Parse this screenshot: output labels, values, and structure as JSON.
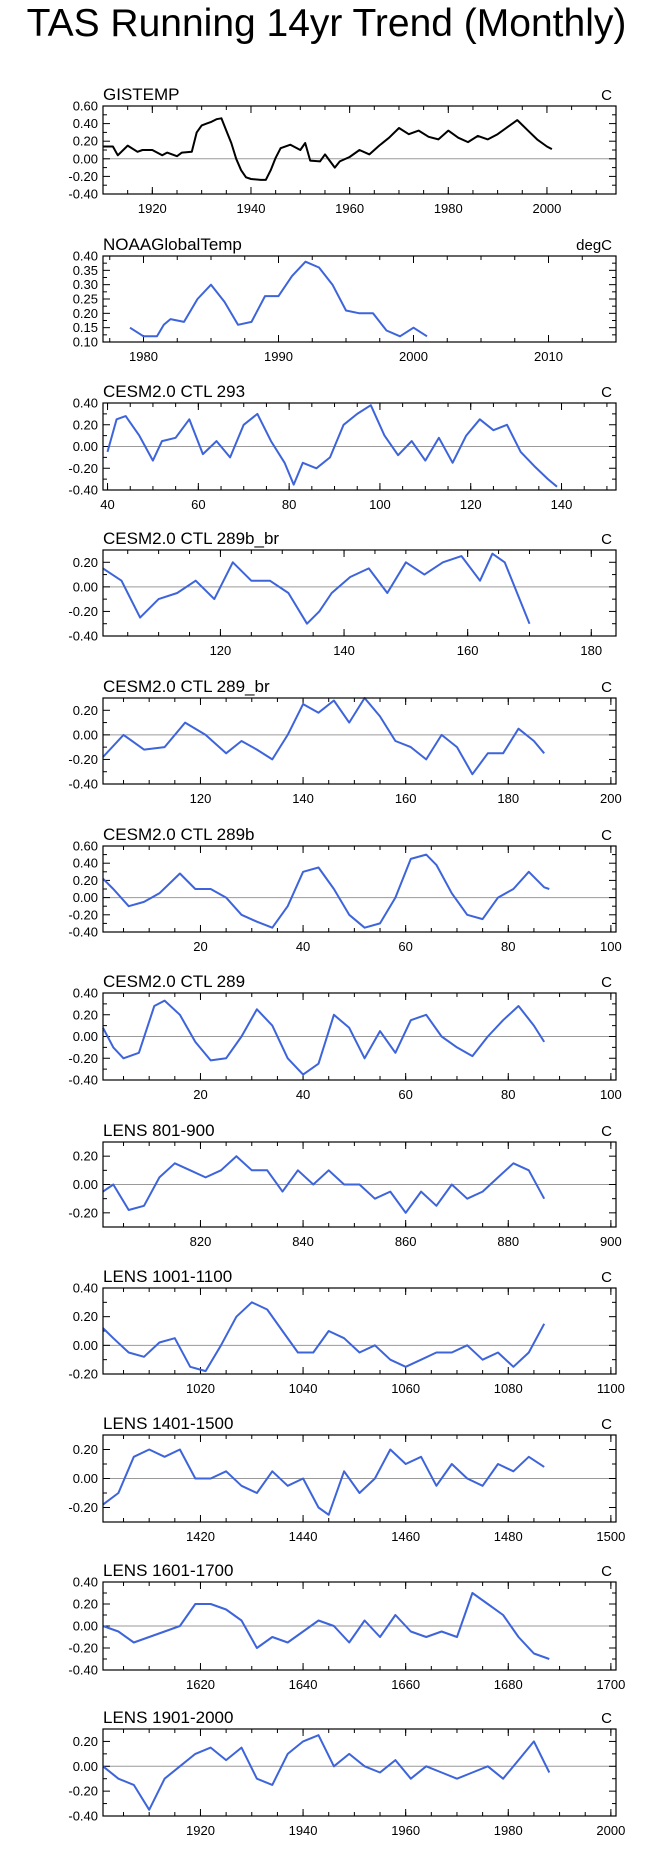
{
  "title": "TAS Running 14yr Trend (Monthly)",
  "chart_data": [
    {
      "type": "line",
      "title": "GISTEMP",
      "units": "C",
      "color": "#000000",
      "xlim": [
        1910,
        2014
      ],
      "ylim": [
        -0.4,
        0.6
      ],
      "yticks": [
        0.6,
        0.4,
        0.2,
        0.0,
        -0.2,
        -0.4
      ],
      "ytick_labels": [
        "0.60",
        "0.40",
        "0.20",
        "0.00",
        "-0.20",
        "-0.40"
      ],
      "xticks": [
        1920,
        1940,
        1960,
        1980,
        2000
      ],
      "xtick_labels": [
        "1920",
        "1940",
        "1960",
        "1980",
        "2000"
      ],
      "x": [
        1910,
        1912,
        1913,
        1915,
        1917,
        1918,
        1920,
        1922,
        1923,
        1925,
        1926,
        1928,
        1929,
        1930,
        1931,
        1932,
        1933,
        1934,
        1935,
        1936,
        1937,
        1938,
        1939,
        1940,
        1942,
        1943,
        1944,
        1945,
        1946,
        1948,
        1950,
        1951,
        1952,
        1954,
        1955,
        1957,
        1958,
        1960,
        1962,
        1964,
        1966,
        1968,
        1970,
        1972,
        1974,
        1976,
        1978,
        1980,
        1982,
        1984,
        1986,
        1988,
        1990,
        1992,
        1994,
        1996,
        1998,
        2000,
        2001
      ],
      "y": [
        0.14,
        0.14,
        0.04,
        0.15,
        0.08,
        0.1,
        0.1,
        0.04,
        0.07,
        0.03,
        0.07,
        0.08,
        0.3,
        0.38,
        0.4,
        0.42,
        0.45,
        0.46,
        0.32,
        0.18,
        0.0,
        -0.13,
        -0.21,
        -0.23,
        -0.24,
        -0.24,
        -0.13,
        0.01,
        0.12,
        0.16,
        0.1,
        0.18,
        -0.02,
        -0.03,
        0.05,
        -0.1,
        -0.03,
        0.02,
        0.1,
        0.05,
        0.15,
        0.24,
        0.35,
        0.28,
        0.32,
        0.25,
        0.22,
        0.32,
        0.24,
        0.19,
        0.26,
        0.22,
        0.28,
        0.36,
        0.44,
        0.33,
        0.22,
        0.14,
        0.11
      ]
    },
    {
      "type": "line",
      "title": "NOAAGlobalTemp",
      "units": "degC",
      "color": "#3d64db",
      "xlim": [
        1977,
        2015
      ],
      "ylim": [
        0.1,
        0.4
      ],
      "yticks": [
        0.4,
        0.35,
        0.3,
        0.25,
        0.2,
        0.15,
        0.1
      ],
      "ytick_labels": [
        "0.40",
        "0.35",
        "0.30",
        "0.25",
        "0.20",
        "0.15",
        "0.10"
      ],
      "xticks": [
        1980,
        1990,
        2000,
        2010
      ],
      "xtick_labels": [
        "1980",
        "1990",
        "2000",
        "2010"
      ],
      "x": [
        1979,
        1980,
        1981,
        1981.5,
        1982,
        1983,
        1984,
        1985,
        1986,
        1987,
        1988,
        1989,
        1990,
        1991,
        1992,
        1993,
        1994,
        1995,
        1996,
        1997,
        1998,
        1999,
        2000,
        2001
      ],
      "y": [
        0.15,
        0.12,
        0.12,
        0.16,
        0.18,
        0.17,
        0.25,
        0.3,
        0.24,
        0.16,
        0.17,
        0.26,
        0.26,
        0.33,
        0.38,
        0.36,
        0.3,
        0.21,
        0.2,
        0.2,
        0.14,
        0.12,
        0.15,
        0.12
      ]
    },
    {
      "type": "line",
      "title": "CESM2.0 CTL 293",
      "units": "C",
      "color": "#3d64db",
      "xlim": [
        39,
        152
      ],
      "ylim": [
        -0.4,
        0.4
      ],
      "yticks": [
        0.4,
        0.2,
        0.0,
        -0.2,
        -0.4
      ],
      "ytick_labels": [
        "0.40",
        "0.20",
        "0.00",
        "-0.20",
        "-0.40"
      ],
      "xticks": [
        40,
        60,
        80,
        100,
        120,
        140
      ],
      "xtick_labels": [
        "40",
        "60",
        "80",
        "100",
        "120",
        "140"
      ],
      "x": [
        40,
        42,
        44,
        47,
        50,
        52,
        55,
        58,
        61,
        64,
        67,
        70,
        73,
        76,
        79,
        81,
        83,
        86,
        89,
        92,
        95,
        98,
        101,
        104,
        107,
        110,
        113,
        116,
        119,
        122,
        125,
        128,
        131,
        134,
        137,
        139
      ],
      "y": [
        -0.05,
        0.25,
        0.28,
        0.1,
        -0.13,
        0.05,
        0.08,
        0.25,
        -0.07,
        0.05,
        -0.1,
        0.2,
        0.3,
        0.05,
        -0.15,
        -0.35,
        -0.15,
        -0.2,
        -0.1,
        0.2,
        0.3,
        0.38,
        0.1,
        -0.08,
        0.05,
        -0.13,
        0.08,
        -0.15,
        0.1,
        0.25,
        0.15,
        0.2,
        -0.05,
        -0.18,
        -0.3,
        -0.37
      ]
    },
    {
      "type": "line",
      "title": "CESM2.0 CTL 289b_br",
      "units": "C",
      "color": "#3d64db",
      "xlim": [
        101,
        184
      ],
      "ylim": [
        -0.4,
        0.3
      ],
      "yticks": [
        0.2,
        0.0,
        -0.2,
        -0.4
      ],
      "ytick_labels": [
        "0.20",
        "0.00",
        "-0.20",
        "-0.40"
      ],
      "xticks": [
        120,
        140,
        160,
        180
      ],
      "xtick_labels": [
        "120",
        "140",
        "160",
        "180"
      ],
      "x": [
        101,
        104,
        107,
        110,
        113,
        116,
        119,
        122,
        125,
        128,
        131,
        134,
        136,
        138,
        141,
        144,
        147,
        150,
        153,
        156,
        159,
        162,
        164,
        166,
        168,
        170
      ],
      "y": [
        0.15,
        0.05,
        -0.25,
        -0.1,
        -0.05,
        0.05,
        -0.1,
        0.2,
        0.05,
        0.05,
        -0.05,
        -0.3,
        -0.2,
        -0.05,
        0.08,
        0.15,
        -0.05,
        0.2,
        0.1,
        0.2,
        0.25,
        0.05,
        0.27,
        0.2,
        -0.05,
        -0.3
      ]
    },
    {
      "type": "line",
      "title": "CESM2.0 CTL 289_br",
      "units": "C",
      "color": "#3d64db",
      "xlim": [
        101,
        201
      ],
      "ylim": [
        -0.4,
        0.3
      ],
      "yticks": [
        0.2,
        0.0,
        -0.2,
        -0.4
      ],
      "ytick_labels": [
        "0.20",
        "0.00",
        "-0.20",
        "-0.40"
      ],
      "xticks": [
        120,
        140,
        160,
        180,
        200
      ],
      "xtick_labels": [
        "120",
        "140",
        "160",
        "180",
        "200"
      ],
      "x": [
        101,
        105,
        109,
        113,
        117,
        121,
        125,
        128,
        131,
        134,
        137,
        140,
        143,
        146,
        149,
        152,
        155,
        158,
        161,
        164,
        167,
        170,
        173,
        176,
        179,
        182,
        185,
        187
      ],
      "y": [
        -0.18,
        0.0,
        -0.12,
        -0.1,
        0.1,
        0.0,
        -0.15,
        -0.05,
        -0.12,
        -0.2,
        0.0,
        0.25,
        0.18,
        0.28,
        0.1,
        0.3,
        0.15,
        -0.05,
        -0.1,
        -0.2,
        0.0,
        -0.1,
        -0.32,
        -0.15,
        -0.15,
        0.05,
        -0.05,
        -0.15
      ]
    },
    {
      "type": "line",
      "title": "CESM2.0 CTL 289b",
      "units": "C",
      "color": "#3d64db",
      "xlim": [
        1,
        101
      ],
      "ylim": [
        -0.4,
        0.6
      ],
      "yticks": [
        0.6,
        0.4,
        0.2,
        0.0,
        -0.2,
        -0.4
      ],
      "ytick_labels": [
        "0.60",
        "0.40",
        "0.20",
        "0.00",
        "-0.20",
        "-0.40"
      ],
      "xticks": [
        20,
        40,
        60,
        80,
        100
      ],
      "xtick_labels": [
        "20",
        "40",
        "60",
        "80",
        "100"
      ],
      "x": [
        1,
        3,
        6,
        9,
        12,
        16,
        19,
        22,
        25,
        28,
        31,
        34,
        37,
        40,
        43,
        46,
        49,
        52,
        55,
        58,
        61,
        64,
        66,
        69,
        72,
        75,
        78,
        81,
        84,
        87,
        88
      ],
      "y": [
        0.22,
        0.1,
        -0.1,
        -0.05,
        0.05,
        0.28,
        0.1,
        0.1,
        0.0,
        -0.2,
        -0.28,
        -0.35,
        -0.1,
        0.3,
        0.35,
        0.1,
        -0.2,
        -0.35,
        -0.3,
        0.0,
        0.45,
        0.5,
        0.38,
        0.05,
        -0.2,
        -0.25,
        0.0,
        0.1,
        0.3,
        0.12,
        0.1
      ]
    },
    {
      "type": "line",
      "title": "CESM2.0 CTL 289",
      "units": "C",
      "color": "#3d64db",
      "xlim": [
        1,
        101
      ],
      "ylim": [
        -0.4,
        0.4
      ],
      "yticks": [
        0.4,
        0.2,
        0.0,
        -0.2,
        -0.4
      ],
      "ytick_labels": [
        "0.40",
        "0.20",
        "0.00",
        "-0.20",
        "-0.40"
      ],
      "xticks": [
        20,
        40,
        60,
        80,
        100
      ],
      "xtick_labels": [
        "20",
        "40",
        "60",
        "80",
        "100"
      ],
      "x": [
        1,
        3,
        5,
        8,
        11,
        13,
        16,
        19,
        22,
        25,
        28,
        31,
        34,
        37,
        40,
        43,
        46,
        49,
        52,
        55,
        58,
        61,
        64,
        67,
        70,
        73,
        76,
        79,
        82,
        85,
        87
      ],
      "y": [
        0.08,
        -0.1,
        -0.2,
        -0.15,
        0.28,
        0.33,
        0.2,
        -0.05,
        -0.22,
        -0.2,
        0.0,
        0.25,
        0.1,
        -0.2,
        -0.35,
        -0.25,
        0.2,
        0.08,
        -0.2,
        0.05,
        -0.15,
        0.15,
        0.2,
        0.0,
        -0.1,
        -0.18,
        0.0,
        0.15,
        0.28,
        0.1,
        -0.05
      ]
    },
    {
      "type": "line",
      "title": "LENS 801-900",
      "units": "C",
      "color": "#3d64db",
      "xlim": [
        801,
        901
      ],
      "ylim": [
        -0.3,
        0.3
      ],
      "yticks": [
        0.2,
        0.0,
        -0.2
      ],
      "ytick_labels": [
        "0.20",
        "0.00",
        "-0.20"
      ],
      "xticks": [
        820,
        840,
        860,
        880,
        900
      ],
      "xtick_labels": [
        "820",
        "840",
        "860",
        "880",
        "900"
      ],
      "x": [
        801,
        803,
        806,
        809,
        812,
        815,
        818,
        821,
        824,
        827,
        830,
        833,
        836,
        839,
        842,
        845,
        848,
        851,
        854,
        857,
        860,
        863,
        866,
        869,
        872,
        875,
        878,
        881,
        884,
        887
      ],
      "y": [
        -0.05,
        0.0,
        -0.18,
        -0.15,
        0.05,
        0.15,
        0.1,
        0.05,
        0.1,
        0.2,
        0.1,
        0.1,
        -0.05,
        0.1,
        0.0,
        0.1,
        0.0,
        0.0,
        -0.1,
        -0.05,
        -0.2,
        -0.05,
        -0.15,
        0.0,
        -0.1,
        -0.05,
        0.05,
        0.15,
        0.1,
        -0.1
      ]
    },
    {
      "type": "line",
      "title": "LENS 1001-1100",
      "units": "C",
      "color": "#3d64db",
      "xlim": [
        1001,
        1101
      ],
      "ylim": [
        -0.2,
        0.4
      ],
      "yticks": [
        0.4,
        0.2,
        0.0,
        -0.2
      ],
      "ytick_labels": [
        "0.40",
        "0.20",
        "0.00",
        "-0.20"
      ],
      "xticks": [
        1020,
        1040,
        1060,
        1080,
        1100
      ],
      "xtick_labels": [
        "1020",
        "1040",
        "1060",
        "1080",
        "1100"
      ],
      "x": [
        1001,
        1003,
        1006,
        1009,
        1012,
        1015,
        1018,
        1021,
        1024,
        1027,
        1030,
        1033,
        1036,
        1039,
        1042,
        1045,
        1048,
        1051,
        1054,
        1057,
        1060,
        1063,
        1066,
        1069,
        1072,
        1075,
        1078,
        1081,
        1084,
        1087
      ],
      "y": [
        0.12,
        0.05,
        -0.05,
        -0.08,
        0.02,
        0.05,
        -0.15,
        -0.18,
        0.0,
        0.2,
        0.3,
        0.25,
        0.1,
        -0.05,
        -0.05,
        0.1,
        0.05,
        -0.05,
        0.0,
        -0.1,
        -0.15,
        -0.1,
        -0.05,
        -0.05,
        0.0,
        -0.1,
        -0.05,
        -0.15,
        -0.05,
        0.15
      ]
    },
    {
      "type": "line",
      "title": "LENS 1401-1500",
      "units": "C",
      "color": "#3d64db",
      "xlim": [
        1401,
        1501
      ],
      "ylim": [
        -0.3,
        0.3
      ],
      "yticks": [
        0.2,
        0.0,
        -0.2
      ],
      "ytick_labels": [
        "0.20",
        "0.00",
        "-0.20"
      ],
      "xticks": [
        1420,
        1440,
        1460,
        1480,
        1500
      ],
      "xtick_labels": [
        "1420",
        "1440",
        "1460",
        "1480",
        "1500"
      ],
      "x": [
        1401,
        1404,
        1407,
        1410,
        1413,
        1416,
        1419,
        1422,
        1425,
        1428,
        1431,
        1434,
        1437,
        1440,
        1443,
        1445,
        1448,
        1451,
        1454,
        1457,
        1460,
        1463,
        1466,
        1469,
        1472,
        1475,
        1478,
        1481,
        1484,
        1487
      ],
      "y": [
        -0.18,
        -0.1,
        0.15,
        0.2,
        0.15,
        0.2,
        0.0,
        0.0,
        0.05,
        -0.05,
        -0.1,
        0.05,
        -0.05,
        0.0,
        -0.2,
        -0.25,
        0.05,
        -0.1,
        0.0,
        0.2,
        0.1,
        0.15,
        -0.05,
        0.1,
        0.0,
        -0.05,
        0.1,
        0.05,
        0.15,
        0.08
      ]
    },
    {
      "type": "line",
      "title": "LENS 1601-1700",
      "units": "C",
      "color": "#3d64db",
      "xlim": [
        1601,
        1701
      ],
      "ylim": [
        -0.4,
        0.4
      ],
      "yticks": [
        0.4,
        0.2,
        0.0,
        -0.2,
        -0.4
      ],
      "ytick_labels": [
        "0.40",
        "0.20",
        "0.00",
        "-0.20",
        "-0.40"
      ],
      "xticks": [
        1620,
        1640,
        1660,
        1680,
        1700
      ],
      "xtick_labels": [
        "1620",
        "1640",
        "1660",
        "1680",
        "1700"
      ],
      "x": [
        1601,
        1604,
        1607,
        1610,
        1613,
        1616,
        1619,
        1622,
        1625,
        1628,
        1631,
        1634,
        1637,
        1640,
        1643,
        1646,
        1649,
        1652,
        1655,
        1658,
        1661,
        1664,
        1667,
        1670,
        1673,
        1676,
        1679,
        1682,
        1685,
        1688
      ],
      "y": [
        0.0,
        -0.05,
        -0.15,
        -0.1,
        -0.05,
        0.0,
        0.2,
        0.2,
        0.15,
        0.05,
        -0.2,
        -0.1,
        -0.15,
        -0.05,
        0.05,
        0.0,
        -0.15,
        0.05,
        -0.1,
        0.1,
        -0.05,
        -0.1,
        -0.05,
        -0.1,
        0.3,
        0.2,
        0.1,
        -0.1,
        -0.25,
        -0.3
      ]
    },
    {
      "type": "line",
      "title": "LENS 1901-2000",
      "units": "C",
      "color": "#3d64db",
      "xlim": [
        1901,
        2001
      ],
      "ylim": [
        -0.4,
        0.3
      ],
      "yticks": [
        0.2,
        0.0,
        -0.2,
        -0.4
      ],
      "ytick_labels": [
        "0.20",
        "0.00",
        "-0.20",
        "-0.40"
      ],
      "xticks": [
        1920,
        1940,
        1960,
        1980,
        2000
      ],
      "xtick_labels": [
        "1920",
        "1940",
        "1960",
        "1980",
        "2000"
      ],
      "x": [
        1901,
        1904,
        1907,
        1910,
        1913,
        1916,
        1919,
        1922,
        1925,
        1928,
        1931,
        1934,
        1937,
        1940,
        1943,
        1946,
        1949,
        1952,
        1955,
        1958,
        1961,
        1964,
        1967,
        1970,
        1973,
        1976,
        1979,
        1982,
        1985,
        1988
      ],
      "y": [
        0.0,
        -0.1,
        -0.15,
        -0.35,
        -0.1,
        0.0,
        0.1,
        0.15,
        0.05,
        0.15,
        -0.1,
        -0.15,
        0.1,
        0.2,
        0.25,
        0.0,
        0.1,
        0.0,
        -0.05,
        0.05,
        -0.1,
        0.0,
        -0.05,
        -0.1,
        -0.05,
        0.0,
        -0.1,
        0.05,
        0.2,
        -0.05
      ]
    }
  ]
}
